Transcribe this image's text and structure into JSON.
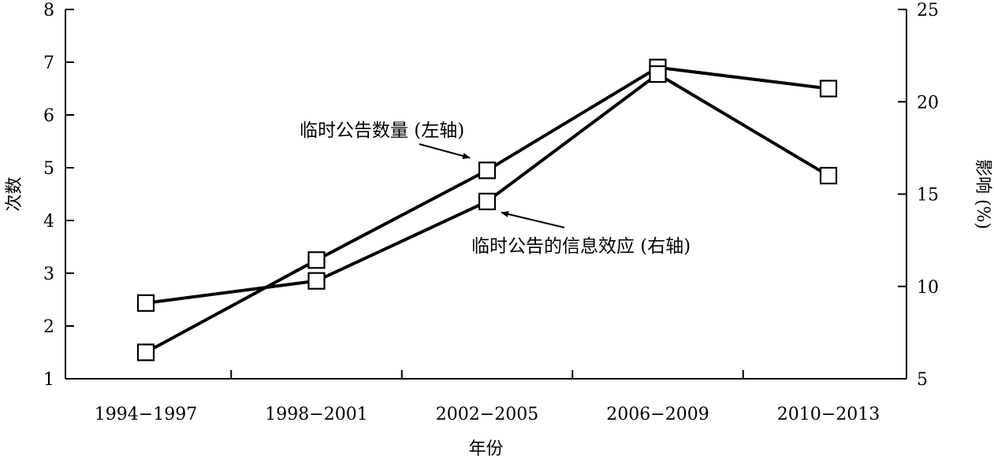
{
  "chart_data": {
    "type": "line",
    "xlabel": "年份",
    "ylabel_left": "次数",
    "ylabel_right": "影响 (%)",
    "categories": [
      "1994−1997",
      "1998−2001",
      "2002−2005",
      "2006−2009",
      "2010−2013"
    ],
    "y_left": {
      "range": [
        1,
        8
      ],
      "ticks": [
        "1",
        "2",
        "3",
        "4",
        "5",
        "6",
        "7",
        "8"
      ]
    },
    "y_right": {
      "range": [
        5,
        25
      ],
      "ticks": [
        "5",
        "10",
        "15",
        "20",
        "25"
      ]
    },
    "grid": false,
    "series": [
      {
        "name": "临时公告数量 (左轴)",
        "axis": "left",
        "marker": "square",
        "values": [
          1.5,
          3.25,
          4.95,
          6.9,
          6.5
        ]
      },
      {
        "name": "临时公告的信息效应 (右轴)",
        "axis": "right",
        "marker": "square",
        "values": [
          9.1,
          10.3,
          14.6,
          21.5,
          16.0
        ]
      }
    ],
    "annotations": [
      {
        "text": "临时公告数量 (左轴)",
        "series_index": 0
      },
      {
        "text": "临时公告的信息效应 (右轴)",
        "series_index": 1
      }
    ]
  }
}
